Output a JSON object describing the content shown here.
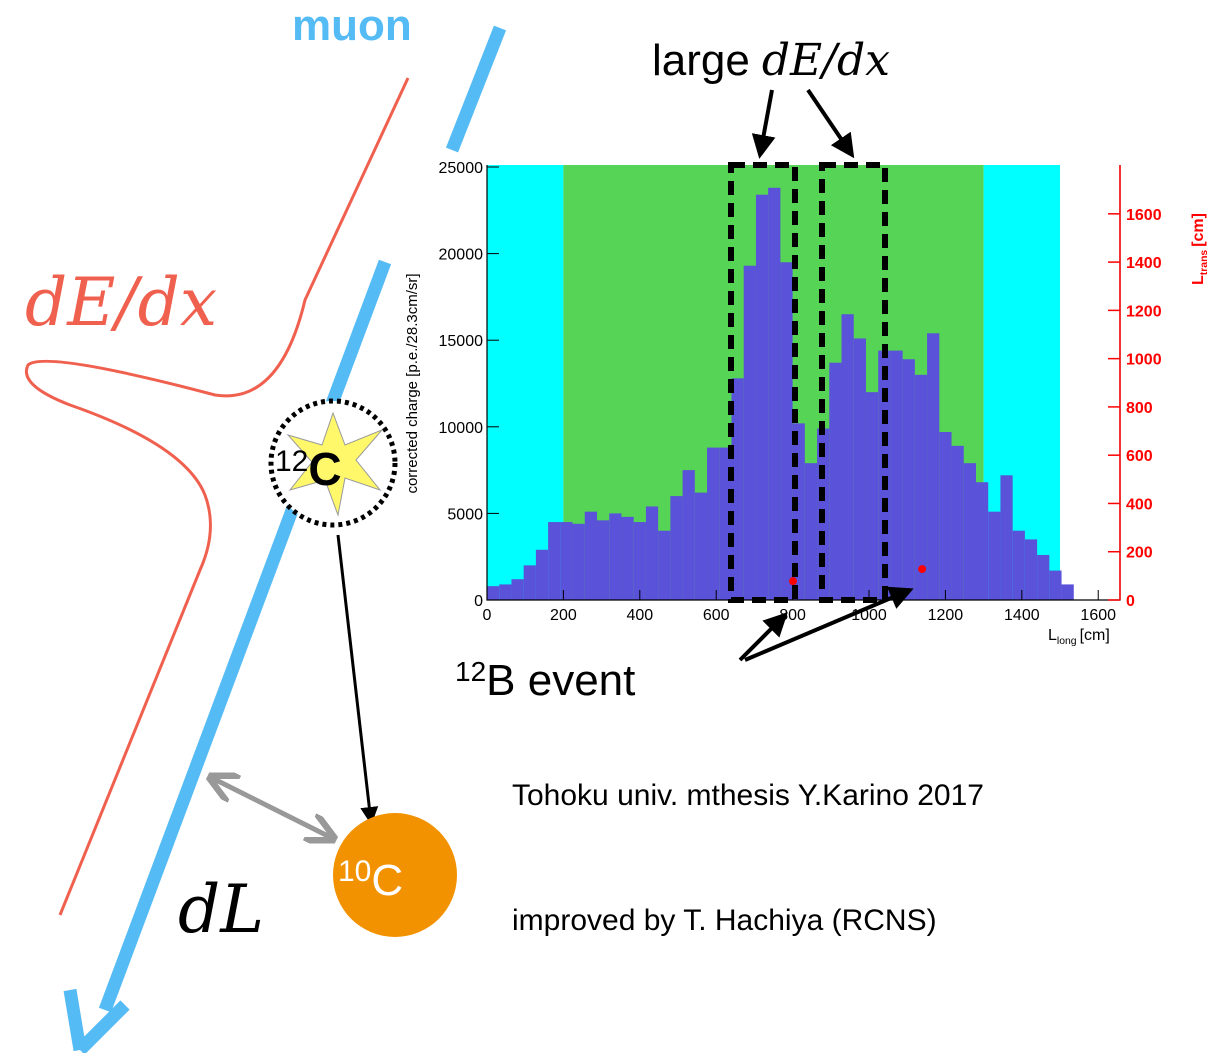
{
  "chart_data": {
    "type": "histogram",
    "ylabel": "corrected charge [p.e./28.3cm/sr]",
    "xlabel": {
      "main": "L",
      "sub": "long",
      "unit": "[cm]"
    },
    "y2label": {
      "main": "L",
      "sub": "trans",
      "unit": "[cm]"
    },
    "bins": [
      0,
      32,
      64,
      96,
      128,
      160,
      192,
      224,
      256,
      288,
      320,
      352,
      384,
      416,
      448,
      480,
      512,
      544,
      576,
      608,
      640,
      672,
      704,
      736,
      768,
      800,
      832,
      864,
      896,
      928,
      960,
      992,
      1024,
      1056,
      1088,
      1120,
      1152,
      1184,
      1216,
      1248,
      1280,
      1312,
      1344,
      1376,
      1408,
      1440,
      1472,
      1504,
      1536
    ],
    "counts": [
      800,
      900,
      1200,
      2000,
      2900,
      4500,
      4500,
      4400,
      5100,
      4600,
      5000,
      4800,
      4500,
      5400,
      4000,
      6000,
      7500,
      6200,
      8800,
      8800,
      12800,
      19300,
      23400,
      23800,
      19500,
      10200,
      7900,
      9900,
      13700,
      16500,
      15100,
      12000,
      14400,
      14400,
      13900,
      13000,
      15400,
      9700,
      8900,
      7900,
      6800,
      5100,
      7200,
      4000,
      3500,
      2600,
      1700,
      900
    ],
    "color": "#5a52d8",
    "regions": [
      {
        "x0": 0,
        "x1": 200,
        "color": "#00ffff"
      },
      {
        "x0": 200,
        "x1": 1300,
        "color": "#55d455"
      },
      {
        "x0": 1300,
        "x1": 1500,
        "color": "#00ffff"
      }
    ],
    "markers": {
      "x": [
        801,
        1139
      ],
      "y": [
        78,
        128
      ],
      "color": "#ff0000",
      "axis": "y2"
    },
    "xlim": [
      0,
      1657
    ],
    "ylim": [
      0,
      25000
    ],
    "y2lim": [
      0,
      1794
    ],
    "xticks": [
      0,
      200,
      400,
      600,
      800,
      1000,
      1200,
      1400,
      1600
    ],
    "yticks": [
      0,
      5000,
      10000,
      15000,
      20000,
      25000
    ],
    "y2ticks": [
      0,
      200,
      400,
      600,
      800,
      1000,
      1200,
      1400,
      1600
    ],
    "y2color": "#ff0000"
  },
  "diagram": {
    "muon": "muon",
    "dedx": "dE/dx",
    "large": "large",
    "large_math": "dE/dx",
    "c12": {
      "sup": "12",
      "main": "C"
    },
    "c10": {
      "sup": "10",
      "main": "C"
    },
    "dl": "dL",
    "b12": {
      "sup": "12",
      "main": "B event"
    },
    "credit1": "Tohoku univ. mthesis Y.Karino 2017",
    "credit2": "improved by T. Hachiya (RCNS)"
  }
}
